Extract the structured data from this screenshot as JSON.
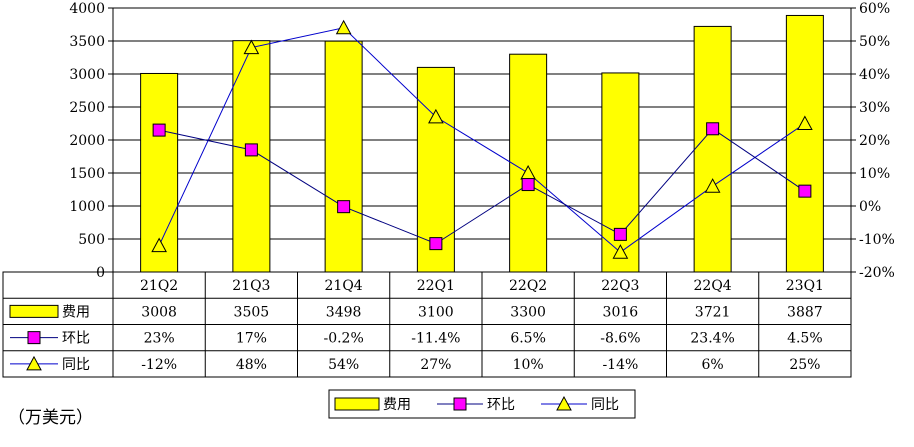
{
  "unit_note": "（万美元）",
  "colors": {
    "bar": "#ffff00",
    "bar_stroke": "#000000",
    "qoq_marker": "#ff00ff",
    "qoq_line": "#000080",
    "yoy_marker": "#ffff00",
    "yoy_line": "#0000cc",
    "grid": "#000000"
  },
  "chart_data": {
    "type": "bar",
    "title": "",
    "categories": [
      "21Q2",
      "21Q3",
      "21Q4",
      "22Q1",
      "22Q2",
      "22Q3",
      "22Q4",
      "23Q1"
    ],
    "series": [
      {
        "name": "费用",
        "type": "bar",
        "axis": "left",
        "values": [
          3008,
          3505,
          3498,
          3100,
          3300,
          3016,
          3721,
          3887
        ],
        "labels": [
          "3008",
          "3505",
          "3498",
          "3100",
          "3300",
          "3016",
          "3721",
          "3887"
        ]
      },
      {
        "name": "环比",
        "type": "line",
        "axis": "right",
        "marker": "square",
        "values": [
          23,
          17,
          -0.2,
          -11.4,
          6.5,
          -8.6,
          23.4,
          4.5
        ],
        "labels": [
          "23%",
          "17%",
          "-0.2%",
          "-11.4%",
          "6.5%",
          "-8.6%",
          "23.4%",
          "4.5%"
        ]
      },
      {
        "name": "同比",
        "type": "line",
        "axis": "right",
        "marker": "triangle",
        "values": [
          -12,
          48,
          54,
          27,
          10,
          -14,
          6,
          25
        ],
        "labels": [
          "-12%",
          "48%",
          "54%",
          "27%",
          "10%",
          "-14%",
          "6%",
          "25%"
        ]
      }
    ],
    "y_left": {
      "range": [
        0,
        4000
      ],
      "ticks": [
        0,
        500,
        1000,
        1500,
        2000,
        2500,
        3000,
        3500,
        4000
      ],
      "tick_labels": [
        "0",
        "500",
        "1000",
        "1500",
        "2000",
        "2500",
        "3000",
        "3500",
        "4000"
      ]
    },
    "y_right": {
      "range": [
        -20,
        60
      ],
      "ticks": [
        -20,
        -10,
        0,
        10,
        20,
        30,
        40,
        50,
        60
      ],
      "tick_labels": [
        "-20%",
        "-10%",
        "0%",
        "10%",
        "20%",
        "30%",
        "40%",
        "50%",
        "60%"
      ]
    },
    "grid": true,
    "data_table": true,
    "legend": {
      "position": "bottom-center",
      "entries": [
        "费用",
        "环比",
        "同比"
      ]
    }
  }
}
